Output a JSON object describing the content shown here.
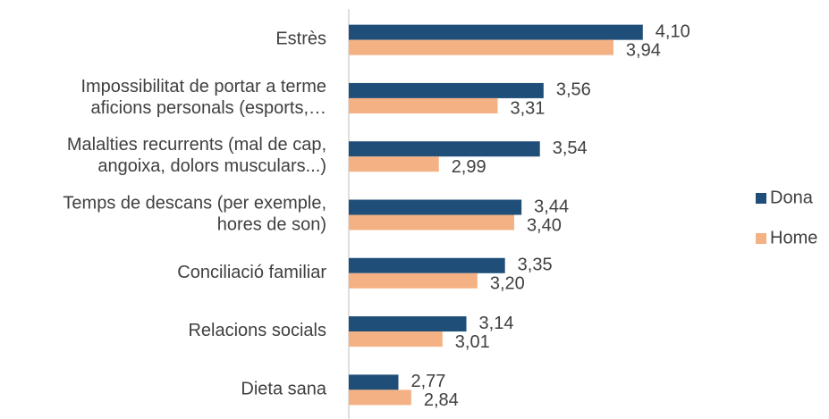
{
  "chart_data": {
    "type": "hbar",
    "categories": [
      "Estrès",
      "Impossibilitat de portar a terme\naficions personals (esports,…",
      "Malalties recurrents (mal de cap,\nangoixa, dolors musculars...)",
      "Temps de descans (per exemple,\nhores de son)",
      "Conciliació familiar",
      "Relacions socials",
      "Dieta sana"
    ],
    "series": [
      {
        "name": "Dona",
        "color": "#1f4e79",
        "values": [
          4.1,
          3.56,
          3.54,
          3.44,
          3.35,
          3.14,
          2.77
        ],
        "value_labels": [
          "4,10",
          "3,56",
          "3,54",
          "3,44",
          "3,35",
          "3,14",
          "2,77"
        ]
      },
      {
        "name": "Home",
        "color": "#f4b183",
        "values": [
          3.94,
          3.31,
          2.99,
          3.4,
          3.2,
          3.01,
          2.84
        ],
        "value_labels": [
          "3,94",
          "3,31",
          "2,99",
          "3,40",
          "3,20",
          "3,01",
          "2,84"
        ]
      }
    ],
    "xlim": [
      2.5,
      4.5
    ],
    "legend": "right"
  }
}
